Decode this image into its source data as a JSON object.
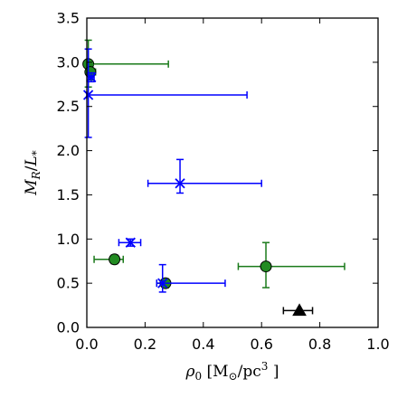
{
  "chart_data": {
    "type": "scatter",
    "xlabel_parts": {
      "symbol": "ρ",
      "sub": "0",
      "unit_open": " [M",
      "unit_sub": "⊙",
      "unit_mid": "/pc",
      "unit_sup": "3",
      "unit_close": " ]"
    },
    "ylabel_parts": {
      "m": "M",
      "m_sub": "R",
      "slash": "/",
      "l": "L",
      "l_sub": "*"
    },
    "xlim": [
      0.0,
      1.0
    ],
    "ylim": [
      0.0,
      3.5
    ],
    "xticks": [
      "0.0",
      "0.2",
      "0.4",
      "0.6",
      "0.8",
      "1.0"
    ],
    "xtick_values": [
      0.0,
      0.2,
      0.4,
      0.6,
      0.8,
      1.0
    ],
    "yticks": [
      "0.0",
      "0.5",
      "1.0",
      "1.5",
      "2.0",
      "2.5",
      "3.0",
      "3.5"
    ],
    "ytick_values": [
      0.0,
      0.5,
      1.0,
      1.5,
      2.0,
      2.5,
      3.0,
      3.5
    ],
    "grid": false,
    "series": [
      {
        "marker": "circle",
        "color": "#1a7a1a",
        "fill": "#228b22",
        "points": [
          {
            "x": 0.005,
            "y": 2.98,
            "xlo": 0.005,
            "xhi": 0.28,
            "ylo": 2.72,
            "yhi": 3.25
          },
          {
            "x": 0.012,
            "y": 2.89,
            "xlo": 0.005,
            "xhi": 0.03,
            "ylo": 2.8,
            "yhi": 2.97
          },
          {
            "x": 0.095,
            "y": 0.77,
            "xlo": 0.025,
            "xhi": 0.125,
            "ylo": 0.72,
            "yhi": 0.82
          },
          {
            "x": 0.27,
            "y": 0.5,
            "xlo": 0.24,
            "xhi": 0.28,
            "ylo": 0.45,
            "yhi": 0.55
          },
          {
            "x": 0.615,
            "y": 0.69,
            "xlo": 0.52,
            "xhi": 0.885,
            "ylo": 0.45,
            "yhi": 0.96
          }
        ]
      },
      {
        "marker": "x",
        "color": "#0000ff",
        "fill": "none",
        "points": [
          {
            "x": 0.005,
            "y": 2.63,
            "xlo": 0.0,
            "xhi": 0.55,
            "ylo": 2.15,
            "yhi": 3.15
          },
          {
            "x": 0.015,
            "y": 2.83,
            "xlo": 0.005,
            "xhi": 0.025,
            "ylo": 2.78,
            "yhi": 2.88
          },
          {
            "x": 0.32,
            "y": 1.63,
            "xlo": 0.21,
            "xhi": 0.6,
            "ylo": 1.52,
            "yhi": 1.9
          },
          {
            "x": 0.15,
            "y": 0.96,
            "xlo": 0.11,
            "xhi": 0.185,
            "ylo": 0.92,
            "yhi": 1.0
          },
          {
            "x": 0.26,
            "y": 0.5,
            "xlo": 0.24,
            "xhi": 0.475,
            "ylo": 0.4,
            "yhi": 0.71
          }
        ]
      },
      {
        "marker": "triangle",
        "color": "#000000",
        "fill": "#000000",
        "points": [
          {
            "x": 0.73,
            "y": 0.19,
            "xlo": 0.675,
            "xhi": 0.775,
            "ylo": 0.19,
            "yhi": 0.19
          }
        ]
      }
    ]
  }
}
